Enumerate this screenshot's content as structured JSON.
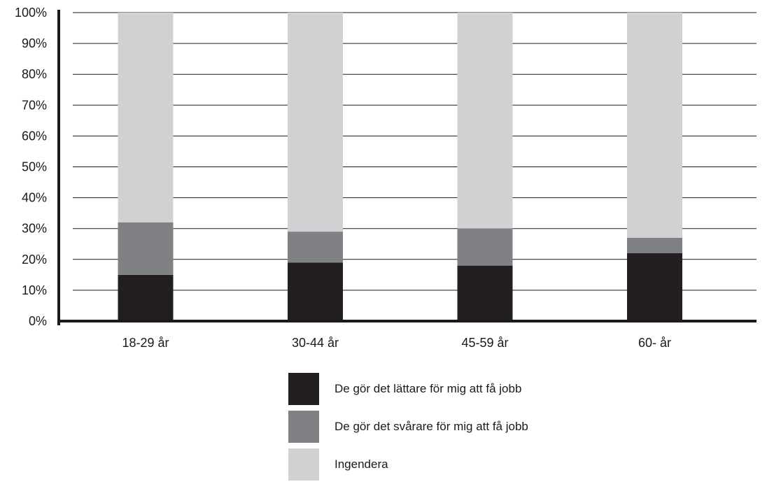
{
  "chart_data": {
    "type": "bar",
    "stacked": true,
    "categories": [
      "18-29 år",
      "30-44 år",
      "45-59 år",
      "60- år"
    ],
    "series": [
      {
        "name": "De gör det lättare för mig att få jobb",
        "color": "#231f20",
        "values": [
          15,
          19,
          18,
          22
        ]
      },
      {
        "name": "De gör det svårare för mig att få jobb",
        "color": "#808184",
        "values": [
          17,
          10,
          12,
          5
        ]
      },
      {
        "name": "Ingendera",
        "color": "#d0d1d3",
        "values": [
          68,
          71,
          70,
          73
        ]
      }
    ],
    "yticks": [
      "0%",
      "10%",
      "20%",
      "30%",
      "40%",
      "50%",
      "60%",
      "70%",
      "80%",
      "90%",
      "100%"
    ],
    "ylim": [
      0,
      100
    ],
    "grid": true,
    "legend_position": "bottom-center"
  }
}
